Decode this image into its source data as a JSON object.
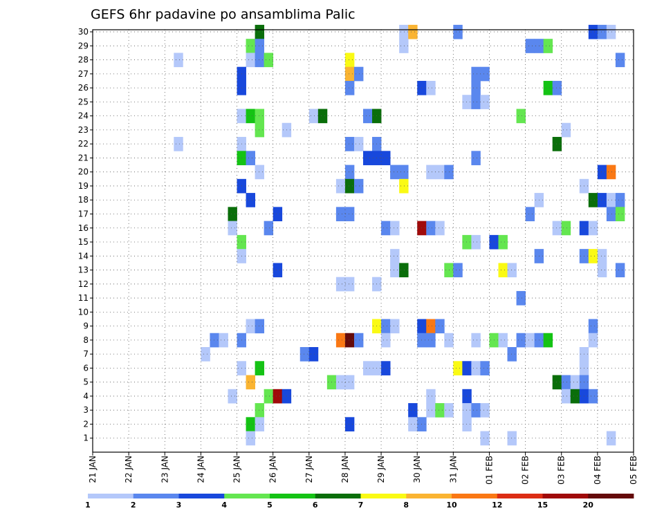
{
  "chart_data": {
    "type": "heatmap",
    "title": "GEFS 6hr padavine po ansamblima Palic",
    "xlabel": "",
    "ylabel": "",
    "x_ticks": [
      "21 JAN",
      "22 JAN",
      "23 JAN",
      "24 JAN",
      "25 JAN",
      "26 JAN",
      "27 JAN",
      "28 JAN",
      "29 JAN",
      "30 JAN",
      "31 JAN",
      "01 FEB",
      "02 FEB",
      "03 FEB",
      "04 FEB",
      "05 FEB"
    ],
    "y_ticks": [
      "1",
      "2",
      "3",
      "4",
      "5",
      "6",
      "7",
      "8",
      "9",
      "10",
      "11",
      "12",
      "13",
      "14",
      "15",
      "16",
      "17",
      "18",
      "19",
      "20",
      "21",
      "22",
      "23",
      "24",
      "25",
      "26",
      "27",
      "28",
      "29",
      "30"
    ],
    "time_steps_per_day": 4,
    "n_time_steps": 60,
    "n_members": 30,
    "legend": {
      "labels": [
        "1",
        "2",
        "3",
        "4",
        "5",
        "6",
        "7",
        "8",
        "10",
        "12",
        "15",
        "20"
      ],
      "colors": [
        "#b4c8fa",
        "#5a87ee",
        "#1848dc",
        "#64e650",
        "#14c314",
        "#0a6e0a",
        "#fafa14",
        "#fab432",
        "#fa7814",
        "#dc2d14",
        "#a00a0a",
        "#640a0a"
      ]
    },
    "cells": [
      [
        30,
        18,
        6
      ],
      [
        30,
        34,
        1
      ],
      [
        30,
        35,
        8
      ],
      [
        30,
        40,
        2
      ],
      [
        30,
        55,
        3
      ],
      [
        30,
        56,
        2
      ],
      [
        30,
        57,
        1
      ],
      [
        29,
        17,
        4
      ],
      [
        29,
        18,
        2
      ],
      [
        29,
        34,
        1
      ],
      [
        29,
        48,
        2
      ],
      [
        29,
        49,
        2
      ],
      [
        29,
        50,
        4
      ],
      [
        28,
        9,
        1
      ],
      [
        28,
        17,
        1
      ],
      [
        28,
        18,
        2
      ],
      [
        28,
        19,
        4
      ],
      [
        28,
        28,
        7
      ],
      [
        28,
        58,
        2
      ],
      [
        27,
        16,
        3
      ],
      [
        27,
        28,
        8
      ],
      [
        27,
        29,
        2
      ],
      [
        27,
        42,
        2
      ],
      [
        27,
        43,
        2
      ],
      [
        26,
        16,
        3
      ],
      [
        26,
        28,
        2
      ],
      [
        26,
        36,
        3
      ],
      [
        26,
        37,
        1
      ],
      [
        26,
        42,
        2
      ],
      [
        26,
        50,
        5
      ],
      [
        26,
        51,
        2
      ],
      [
        25,
        41,
        1
      ],
      [
        25,
        42,
        2
      ],
      [
        25,
        43,
        1
      ],
      [
        24,
        16,
        1
      ],
      [
        24,
        17,
        5
      ],
      [
        24,
        18,
        4
      ],
      [
        24,
        24,
        1
      ],
      [
        24,
        25,
        6
      ],
      [
        24,
        30,
        2
      ],
      [
        24,
        31,
        6
      ],
      [
        24,
        47,
        4
      ],
      [
        23,
        18,
        4
      ],
      [
        23,
        21,
        1
      ],
      [
        23,
        52,
        1
      ],
      [
        22,
        9,
        1
      ],
      [
        22,
        16,
        1
      ],
      [
        22,
        28,
        2
      ],
      [
        22,
        29,
        1
      ],
      [
        22,
        31,
        2
      ],
      [
        22,
        51,
        6
      ],
      [
        21,
        16,
        5
      ],
      [
        21,
        17,
        2
      ],
      [
        21,
        30,
        3
      ],
      [
        21,
        31,
        3
      ],
      [
        21,
        32,
        3
      ],
      [
        21,
        42,
        2
      ],
      [
        20,
        18,
        1
      ],
      [
        20,
        28,
        2
      ],
      [
        20,
        33,
        2
      ],
      [
        20,
        34,
        2
      ],
      [
        20,
        37,
        1
      ],
      [
        20,
        38,
        1
      ],
      [
        20,
        39,
        2
      ],
      [
        20,
        56,
        3
      ],
      [
        20,
        57,
        9
      ],
      [
        19,
        16,
        3
      ],
      [
        19,
        27,
        1
      ],
      [
        19,
        28,
        6
      ],
      [
        19,
        29,
        2
      ],
      [
        19,
        34,
        7
      ],
      [
        19,
        54,
        1
      ],
      [
        18,
        17,
        3
      ],
      [
        18,
        49,
        1
      ],
      [
        18,
        55,
        6
      ],
      [
        18,
        56,
        3
      ],
      [
        18,
        57,
        1
      ],
      [
        18,
        58,
        2
      ],
      [
        17,
        15,
        6
      ],
      [
        17,
        20,
        3
      ],
      [
        17,
        27,
        2
      ],
      [
        17,
        28,
        2
      ],
      [
        17,
        48,
        2
      ],
      [
        17,
        57,
        2
      ],
      [
        17,
        58,
        4
      ],
      [
        16,
        15,
        1
      ],
      [
        16,
        19,
        2
      ],
      [
        16,
        32,
        2
      ],
      [
        16,
        33,
        1
      ],
      [
        16,
        36,
        11
      ],
      [
        16,
        37,
        2
      ],
      [
        16,
        38,
        1
      ],
      [
        16,
        51,
        1
      ],
      [
        16,
        52,
        4
      ],
      [
        16,
        54,
        3
      ],
      [
        16,
        55,
        1
      ],
      [
        15,
        16,
        4
      ],
      [
        15,
        41,
        4
      ],
      [
        15,
        42,
        1
      ],
      [
        15,
        44,
        3
      ],
      [
        15,
        45,
        4
      ],
      [
        14,
        16,
        1
      ],
      [
        14,
        33,
        1
      ],
      [
        14,
        49,
        2
      ],
      [
        14,
        54,
        2
      ],
      [
        14,
        55,
        7
      ],
      [
        14,
        56,
        1
      ],
      [
        13,
        20,
        3
      ],
      [
        13,
        33,
        1
      ],
      [
        13,
        34,
        6
      ],
      [
        13,
        39,
        4
      ],
      [
        13,
        40,
        2
      ],
      [
        13,
        45,
        7
      ],
      [
        13,
        46,
        1
      ],
      [
        13,
        56,
        1
      ],
      [
        13,
        58,
        2
      ],
      [
        12,
        27,
        1
      ],
      [
        12,
        28,
        1
      ],
      [
        12,
        31,
        1
      ],
      [
        11,
        47,
        2
      ],
      [
        9,
        17,
        1
      ],
      [
        9,
        18,
        2
      ],
      [
        9,
        31,
        7
      ],
      [
        9,
        32,
        2
      ],
      [
        9,
        33,
        1
      ],
      [
        9,
        36,
        3
      ],
      [
        9,
        37,
        9
      ],
      [
        9,
        38,
        2
      ],
      [
        9,
        55,
        2
      ],
      [
        8,
        13,
        2
      ],
      [
        8,
        14,
        1
      ],
      [
        8,
        16,
        2
      ],
      [
        8,
        27,
        9
      ],
      [
        8,
        28,
        12
      ],
      [
        8,
        29,
        2
      ],
      [
        8,
        32,
        1
      ],
      [
        8,
        36,
        2
      ],
      [
        8,
        37,
        2
      ],
      [
        8,
        39,
        1
      ],
      [
        8,
        42,
        1
      ],
      [
        8,
        44,
        4
      ],
      [
        8,
        45,
        1
      ],
      [
        8,
        47,
        2
      ],
      [
        8,
        48,
        1
      ],
      [
        8,
        49,
        2
      ],
      [
        8,
        50,
        5
      ],
      [
        8,
        55,
        1
      ],
      [
        7,
        12,
        1
      ],
      [
        7,
        23,
        2
      ],
      [
        7,
        24,
        3
      ],
      [
        7,
        46,
        2
      ],
      [
        7,
        54,
        1
      ],
      [
        6,
        16,
        1
      ],
      [
        6,
        18,
        5
      ],
      [
        6,
        30,
        1
      ],
      [
        6,
        31,
        1
      ],
      [
        6,
        32,
        3
      ],
      [
        6,
        40,
        7
      ],
      [
        6,
        41,
        3
      ],
      [
        6,
        42,
        1
      ],
      [
        6,
        43,
        2
      ],
      [
        6,
        54,
        1
      ],
      [
        5,
        17,
        8
      ],
      [
        5,
        26,
        4
      ],
      [
        5,
        27,
        1
      ],
      [
        5,
        28,
        1
      ],
      [
        5,
        51,
        6
      ],
      [
        5,
        52,
        2
      ],
      [
        5,
        53,
        1
      ],
      [
        5,
        54,
        2
      ],
      [
        4,
        15,
        1
      ],
      [
        4,
        19,
        4
      ],
      [
        4,
        20,
        11
      ],
      [
        4,
        21,
        3
      ],
      [
        4,
        37,
        1
      ],
      [
        4,
        41,
        3
      ],
      [
        4,
        52,
        1
      ],
      [
        4,
        53,
        6
      ],
      [
        4,
        54,
        3
      ],
      [
        4,
        55,
        2
      ],
      [
        3,
        18,
        4
      ],
      [
        3,
        35,
        3
      ],
      [
        3,
        37,
        1
      ],
      [
        3,
        38,
        4
      ],
      [
        3,
        39,
        1
      ],
      [
        3,
        41,
        1
      ],
      [
        3,
        42,
        2
      ],
      [
        3,
        43,
        1
      ],
      [
        2,
        17,
        5
      ],
      [
        2,
        18,
        1
      ],
      [
        2,
        28,
        3
      ],
      [
        2,
        35,
        1
      ],
      [
        2,
        36,
        2
      ],
      [
        2,
        41,
        1
      ],
      [
        1,
        17,
        1
      ],
      [
        1,
        43,
        1
      ],
      [
        1,
        46,
        1
      ],
      [
        1,
        57,
        1
      ]
    ]
  }
}
